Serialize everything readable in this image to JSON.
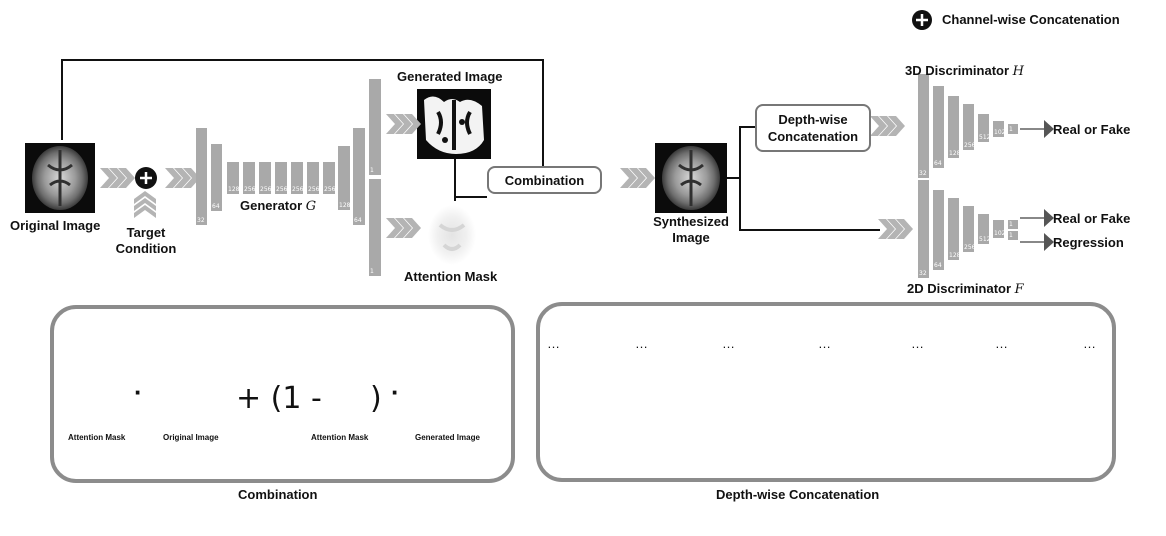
{
  "legend": {
    "text": "Channel-wise  Concatenation",
    "icon": "circle-plus-icon"
  },
  "labels": {
    "original_image": "Original Image",
    "target_condition": "Target\nCondition",
    "generator": "Generator",
    "generator_symbol": "G",
    "generated_image": "Generated Image",
    "attention_mask": "Attention Mask",
    "combination_box": "Combination",
    "synthesized_image": "Synthesized\nImage",
    "depthwise_box": "Depth-wise\nConcatenation",
    "disc3d": "3D Discriminator",
    "disc3d_symbol": "H",
    "disc2d": "2D Discriminator",
    "disc2d_symbol": "F",
    "real_or_fake_3d": "Real or Fake",
    "real_or_fake_2d": "Real or Fake",
    "regression": "Regression"
  },
  "generator_bars": [
    "32",
    "64",
    "128",
    "256",
    "256",
    "256",
    "256",
    "256",
    "256",
    "128",
    "64",
    "1",
    "1"
  ],
  "disc3d_bars": [
    "32",
    "64",
    "128",
    "256",
    "512",
    "1024",
    "1"
  ],
  "disc2d_bars": [
    "32",
    "64",
    "128",
    "256",
    "512",
    "1024",
    "1",
    "1"
  ],
  "combination_panel": {
    "title": "Combination",
    "attention_mask": "Attention Mask",
    "original_image": "Original Image",
    "attention_mask_2": "Attention Mask",
    "generated_image": "Generated Image",
    "op_dot": "·",
    "op_plus_open": "+ (1 -",
    "op_close": ")",
    "op_dot_2": "·"
  },
  "depthwise_panel": {
    "title": "Depth-wise Concatenation",
    "ellipsis": "…"
  },
  "colors": {
    "bar": "#a9a9a9",
    "panel_border": "#8c8c8c",
    "arrow": "#b4b4b4"
  }
}
